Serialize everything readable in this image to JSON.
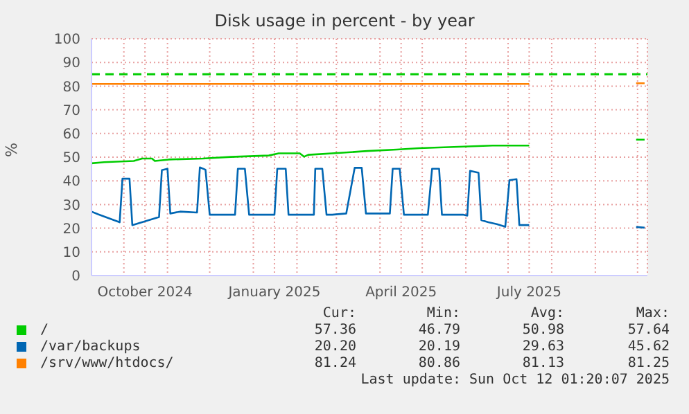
{
  "chart_data": {
    "type": "line",
    "title": "Disk usage in percent - by year",
    "ylabel": "%",
    "xlim": [
      "2024-09-08",
      "2025-10-08"
    ],
    "xticks": [
      {
        "value": "2024-10-01",
        "label": null
      },
      {
        "value": "2024-10-16",
        "label": "October 2024"
      },
      {
        "value": "2024-11-01",
        "label": null
      },
      {
        "value": "2024-12-01",
        "label": null
      },
      {
        "value": "2025-01-01",
        "label": null
      },
      {
        "value": "2025-01-16",
        "label": "January 2025"
      },
      {
        "value": "2025-02-01",
        "label": null
      },
      {
        "value": "2025-03-01",
        "label": null
      },
      {
        "value": "2025-04-01",
        "label": null
      },
      {
        "value": "2025-04-16",
        "label": "April 2025"
      },
      {
        "value": "2025-05-01",
        "label": null
      },
      {
        "value": "2025-06-01",
        "label": null
      },
      {
        "value": "2025-07-01",
        "label": null
      },
      {
        "value": "2025-07-16",
        "label": "July 2025"
      },
      {
        "value": "2025-08-01",
        "label": null
      },
      {
        "value": "2025-09-01",
        "label": null
      },
      {
        "value": "2025-10-01",
        "label": null
      }
    ],
    "ylim": [
      0,
      100
    ],
    "yticks": [
      0,
      10,
      20,
      30,
      40,
      50,
      60,
      70,
      80,
      90,
      100
    ],
    "grid": true,
    "legend": "bottom",
    "marker": "none",
    "line_style": "solid",
    "series": [
      {
        "name": "/",
        "color": "#00cc00",
        "x": [
          "2024-09-08",
          "2024-09-17",
          "2024-10-08",
          "2024-10-14",
          "2024-10-21",
          "2024-10-23",
          "2024-11-02",
          "2024-11-26",
          "2024-12-16",
          "2025-01-12",
          "2025-01-19",
          "2025-02-03",
          "2025-02-06",
          "2025-02-09",
          "2025-03-06",
          "2025-03-23",
          "2025-04-13",
          "2025-04-29",
          "2025-05-27",
          "2025-06-20",
          "2025-07-16",
          "2025-08-15",
          "2025-09-30",
          "2025-10-06"
        ],
        "values": [
          47.4,
          47.9,
          48.4,
          49.4,
          49.4,
          48.4,
          49,
          49.4,
          50.1,
          50.7,
          51.6,
          51.6,
          50.2,
          51,
          51.9,
          52.6,
          53.2,
          53.8,
          54.4,
          54.9,
          54.9,
          null,
          57.4,
          57.4
        ]
      },
      {
        "name": "/var/backups",
        "color": "#0066b3",
        "x": [
          "2024-09-08",
          "2024-09-13",
          "2024-09-28",
          "2024-09-30",
          "2024-10-05",
          "2024-10-07",
          "2024-10-26",
          "2024-10-28",
          "2024-11-01",
          "2024-11-03",
          "2024-11-10",
          "2024-11-22",
          "2024-11-24",
          "2024-11-28",
          "2024-12-01",
          "2024-12-19",
          "2024-12-21",
          "2024-12-26",
          "2024-12-29",
          "2025-01-16",
          "2025-01-18",
          "2025-01-24",
          "2025-01-26",
          "2025-02-13",
          "2025-02-14",
          "2025-02-19",
          "2025-02-22",
          "2025-02-26",
          "2025-03-08",
          "2025-03-14",
          "2025-03-19",
          "2025-03-22",
          "2025-04-08",
          "2025-04-10",
          "2025-04-15",
          "2025-04-18",
          "2025-05-05",
          "2025-05-08",
          "2025-05-13",
          "2025-05-15",
          "2025-05-30",
          "2025-06-02",
          "2025-06-04",
          "2025-06-10",
          "2025-06-12",
          "2025-06-17",
          "2025-06-23",
          "2025-06-29",
          "2025-07-02",
          "2025-07-07",
          "2025-07-09",
          "2025-07-16",
          "2025-08-15",
          "2025-09-30",
          "2025-10-06"
        ],
        "values": [
          27,
          25.8,
          22.5,
          40.9,
          40.9,
          21.3,
          24.7,
          44.5,
          45.1,
          26.2,
          27,
          26.6,
          45.7,
          44.7,
          25.7,
          25.7,
          45.1,
          45.1,
          25.7,
          25.7,
          45.1,
          45.1,
          25.7,
          25.7,
          45.1,
          45.1,
          25.7,
          25.7,
          26.2,
          45.5,
          45.5,
          26.2,
          26.2,
          45.1,
          45.1,
          25.7,
          25.7,
          45.1,
          45.1,
          25.7,
          25.7,
          25.3,
          44.2,
          43.4,
          23.4,
          22.5,
          21.7,
          20.6,
          40.3,
          40.7,
          21.3,
          21.3,
          null,
          20.5,
          20.2
        ]
      },
      {
        "name": "/srv/www/htdocs/",
        "color": "#ff8000",
        "x": [
          "2024-09-08",
          "2025-07-16",
          "2025-08-15",
          "2025-09-30",
          "2025-10-06"
        ],
        "values": [
          80.9,
          80.9,
          null,
          81.2,
          81.2
        ]
      }
    ],
    "ref_lines": [
      {
        "axis": "y",
        "value": 85,
        "color": "#00cc00",
        "line_style": "dashed"
      }
    ],
    "annotations": [
      "Cur:",
      "Min:",
      "Avg:",
      "Max:",
      "57.36",
      "46.79",
      "50.98",
      "57.64",
      "20.20",
      "20.19",
      "29.63",
      "45.62",
      "81.24",
      "80.86",
      "81.13",
      "81.25",
      "Last update: Sun Oct 12 01:20:07 2025"
    ]
  }
}
